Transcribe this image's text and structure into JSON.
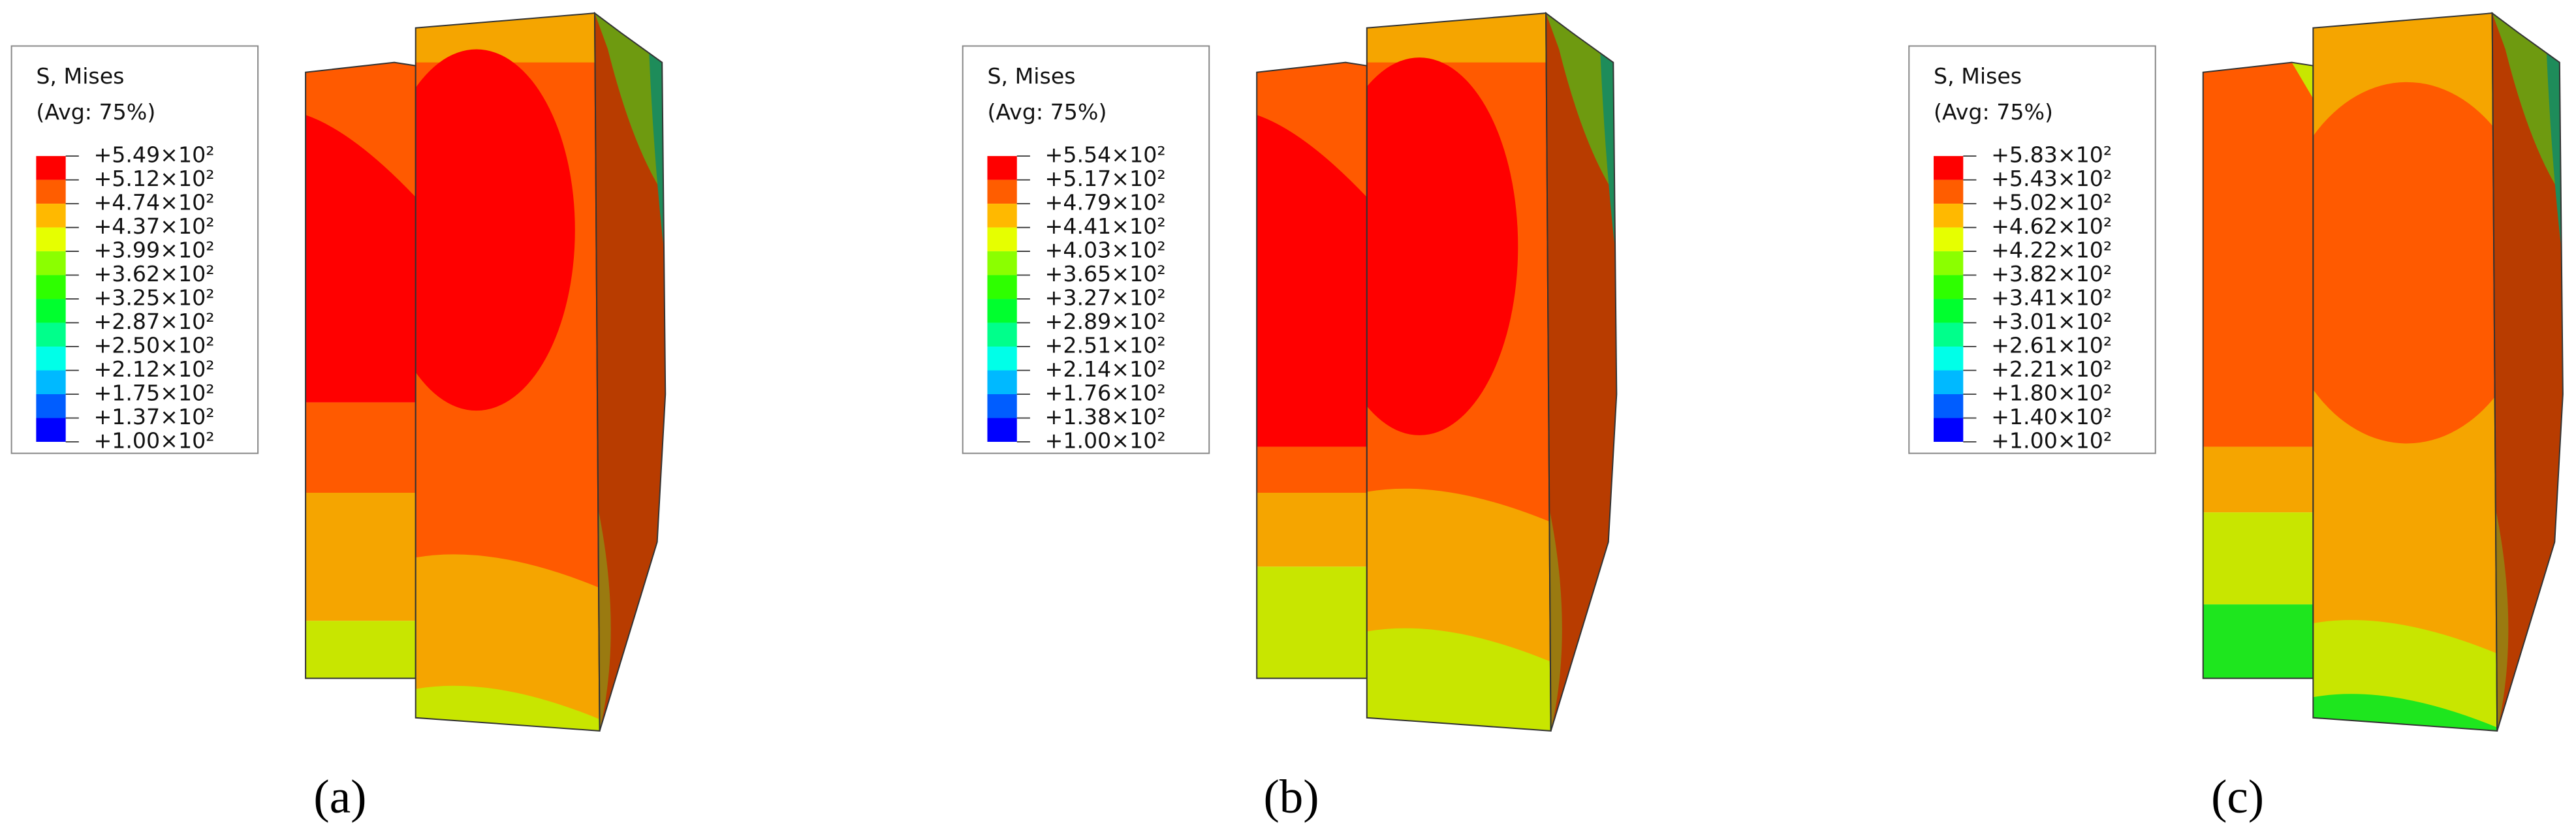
{
  "legend_colors": [
    "#ff0000",
    "#ff5d00",
    "#ffb900",
    "#e6ff00",
    "#8bff00",
    "#2eff00",
    "#00ff2e",
    "#00ff8b",
    "#00ffe8",
    "#00b9ff",
    "#005dff",
    "#0000ff"
  ],
  "panels": [
    {
      "caption": "(a)",
      "legend": {
        "title": "S, Mises",
        "subtitle": "(Avg: 75%)",
        "labels": [
          "+5.49×10²",
          "+5.12×10²",
          "+4.74×10²",
          "+4.37×10²",
          "+3.99×10²",
          "+3.62×10²",
          "+3.25×10²",
          "+2.87×10²",
          "+2.50×10²",
          "+2.12×10²",
          "+1.75×10²",
          "+1.37×10²",
          "+1.00×10²"
        ]
      }
    },
    {
      "caption": "(b)",
      "legend": {
        "title": "S, Mises",
        "subtitle": "(Avg: 75%)",
        "labels": [
          "+5.54×10²",
          "+5.17×10²",
          "+4.79×10²",
          "+4.41×10²",
          "+4.03×10²",
          "+3.65×10²",
          "+3.27×10²",
          "+2.89×10²",
          "+2.51×10²",
          "+2.14×10²",
          "+1.76×10²",
          "+1.38×10²",
          "+1.00×10²"
        ]
      }
    },
    {
      "caption": "(c)",
      "legend": {
        "title": "S, Mises",
        "subtitle": "(Avg: 75%)",
        "labels": [
          "+5.83×10²",
          "+5.43×10²",
          "+5.02×10²",
          "+4.62×10²",
          "+4.22×10²",
          "+3.82×10²",
          "+3.41×10²",
          "+3.01×10²",
          "+2.61×10²",
          "+2.21×10²",
          "+1.80×10²",
          "+1.40×10²",
          "+1.00×10²"
        ]
      }
    }
  ]
}
